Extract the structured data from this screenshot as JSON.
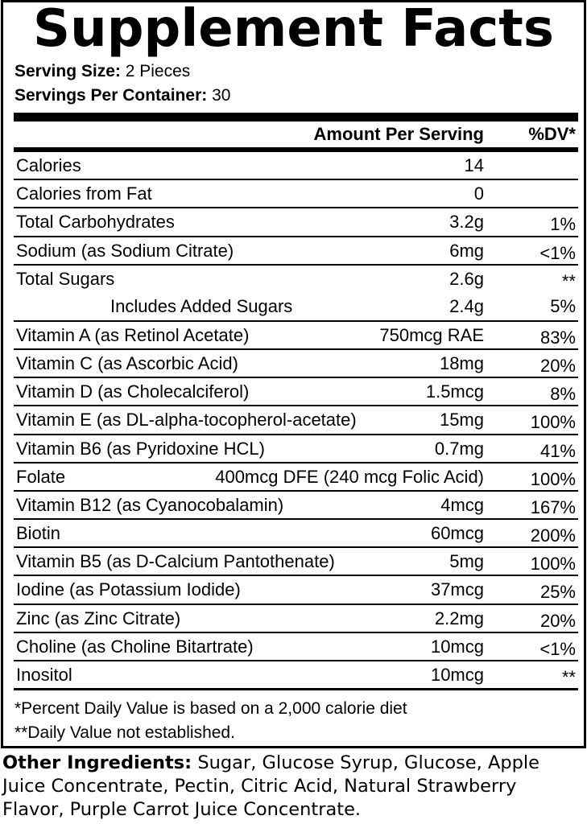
{
  "title": "Supplement Facts",
  "serving_size_label": "Serving Size:",
  "serving_size": "2 Pieces",
  "servings_label": "Servings Per Container:",
  "servings": "30",
  "header": {
    "amount": "Amount Per Serving",
    "dv": "%DV*"
  },
  "rows": [
    {
      "name": "Calories",
      "amount": "14",
      "dv": ""
    },
    {
      "name": "Calories from Fat",
      "amount": "0",
      "dv": ""
    },
    {
      "name": "Total Carbohydrates",
      "amount": "3.2g",
      "dv": "1%"
    },
    {
      "name": "Sodium (as Sodium Citrate)",
      "amount": "6mg",
      "dv": "<1%"
    },
    {
      "name": "Total Sugars",
      "amount": "2.6g",
      "dv": "**",
      "sub_name": "Includes Added Sugars",
      "sub_amount": "2.4g",
      "sub_dv": "5%"
    },
    {
      "name": "Vitamin A (as Retinol Acetate)",
      "amount": "750mcg RAE",
      "dv": "83%"
    },
    {
      "name": "Vitamin C (as Ascorbic Acid)",
      "amount": "18mg",
      "dv": "20%"
    },
    {
      "name": "Vitamin D (as Cholecalciferol)",
      "amount": "1.5mcg",
      "dv": "8%"
    },
    {
      "name": "Vitamin E (as DL-alpha-tocopherol-acetate)",
      "amount": "15mg",
      "dv": "100%"
    },
    {
      "name": "Vitamin B6 (as Pyridoxine HCL)",
      "amount": "0.7mg",
      "dv": "41%"
    },
    {
      "name": "Folate",
      "amount": "400mcg DFE (240 mcg Folic Acid)",
      "dv": "100%"
    },
    {
      "name": "Vitamin B12 (as Cyanocobalamin)",
      "amount": "4mcg",
      "dv": "167%"
    },
    {
      "name": "Biotin",
      "amount": "60mcg",
      "dv": "200%"
    },
    {
      "name": "Vitamin B5 (as D-Calcium Pantothenate)",
      "amount": "5mg",
      "dv": "100%"
    },
    {
      "name": "Iodine (as Potassium Iodide)",
      "amount": "37mcg",
      "dv": "25%"
    },
    {
      "name": "Zinc (as Zinc Citrate)",
      "amount": "2.2mg",
      "dv": "20%"
    },
    {
      "name": "Choline (as Choline Bitartrate)",
      "amount": "10mcg",
      "dv": "<1%"
    },
    {
      "name": "Inositol",
      "amount": "10mcg",
      "dv": "**"
    }
  ],
  "footnote1": "*Percent Daily Value is based on a 2,000 calorie diet",
  "footnote2": "**Daily Value not established.",
  "other_label": "Other Ingredients:",
  "other_text": " Sugar, Glucose Syrup, Glucose, Apple Juice Concentrate, Pectin, Citric Acid, Natural Strawberry Flavor, Purple Carrot Juice Concentrate."
}
